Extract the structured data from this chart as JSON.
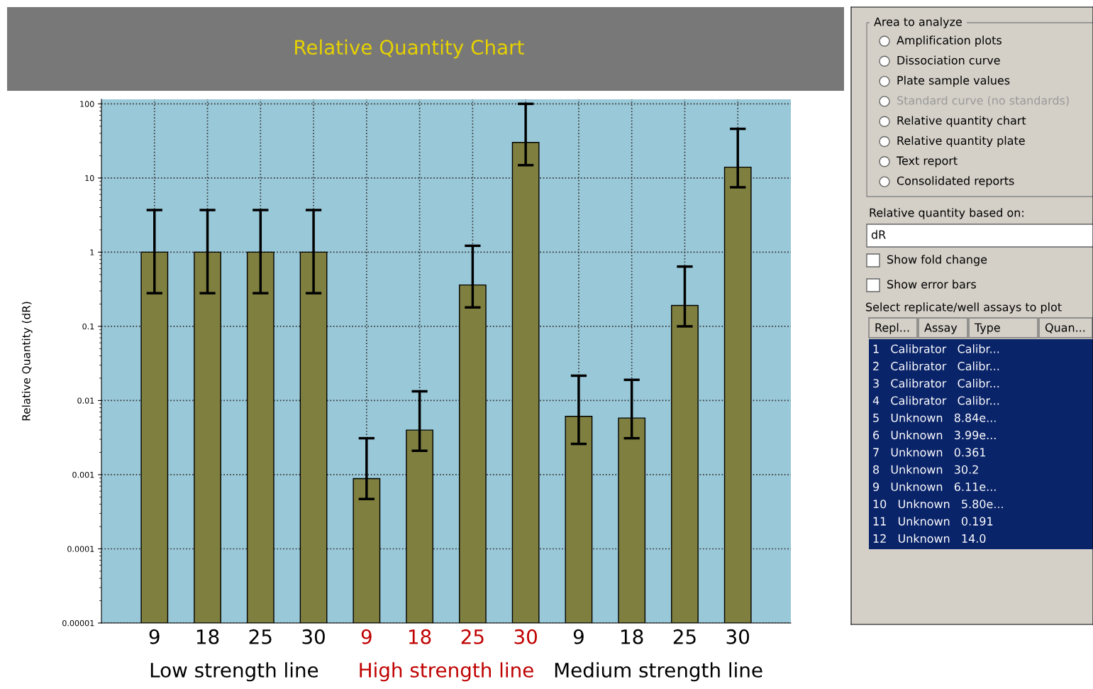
{
  "chart_data": [
    {
      "type": "bar",
      "title": "Relative Quantity Chart",
      "ylabel": "Relative Quantity (dR)",
      "categories": [
        "9",
        "18",
        "25",
        "30",
        "9",
        "18",
        "25",
        "30",
        "9",
        "18",
        "25",
        "30"
      ],
      "values": [
        1,
        1,
        1,
        1,
        0.000884,
        0.00399,
        0.361,
        30.2,
        0.00611,
        0.0058,
        0.191,
        14.0
      ],
      "errors": [
        [
          0.28,
          3.7
        ],
        [
          0.28,
          3.7
        ],
        [
          0.28,
          3.7
        ],
        [
          0.28,
          3.7
        ],
        [
          0.00047,
          0.0031
        ],
        [
          0.0021,
          0.0133
        ],
        [
          0.18,
          1.22
        ],
        [
          14.9,
          100
        ],
        [
          0.0026,
          0.0216
        ],
        [
          0.0031,
          0.019
        ],
        [
          0.1,
          0.64
        ],
        [
          7.5,
          46
        ]
      ],
      "color": "#7f7f3f",
      "log": "y",
      "ylim": [
        1e-05,
        115
      ],
      "yticks": [
        {
          "value": 1e-05,
          "label": "0.00001"
        },
        0.0001,
        0.001,
        0.01,
        0.1,
        1,
        10,
        100
      ],
      "grid": true,
      "line_style": "dotted",
      "annotations": [
        "Low strength line",
        "High strength line",
        "Medium strength line"
      ]
    },
    {
      "type": "other",
      "title": "Area to analyze",
      "annotations": [
        "Amplification plots",
        "Dissociation curve",
        "Plate sample values",
        "Standard curve (no standards)",
        "Relative quantity chart",
        "Relative quantity plate",
        "Text report",
        "Consolidated reports",
        "Relative quantity based on:",
        "dR",
        "Show fold change",
        "Show error bars",
        "Select replicate/well assays to plot",
        "Repl...",
        "Assay",
        "Type",
        "Quan...",
        "1   Calibrator   Calibr...",
        "2   Calibrator   Calibr...",
        "3   Calibrator   Calibr...",
        "4   Calibrator   Calibr...",
        "5   Unknown   8.84e...",
        "6   Unknown   3.99e...",
        "7   Unknown   0.361",
        "8   Unknown   30.2",
        "9   Unknown   6.11e...",
        "10   Unknown   5.80e...",
        "11   Unknown   0.191",
        "12   Unknown   14.0"
      ]
    }
  ]
}
